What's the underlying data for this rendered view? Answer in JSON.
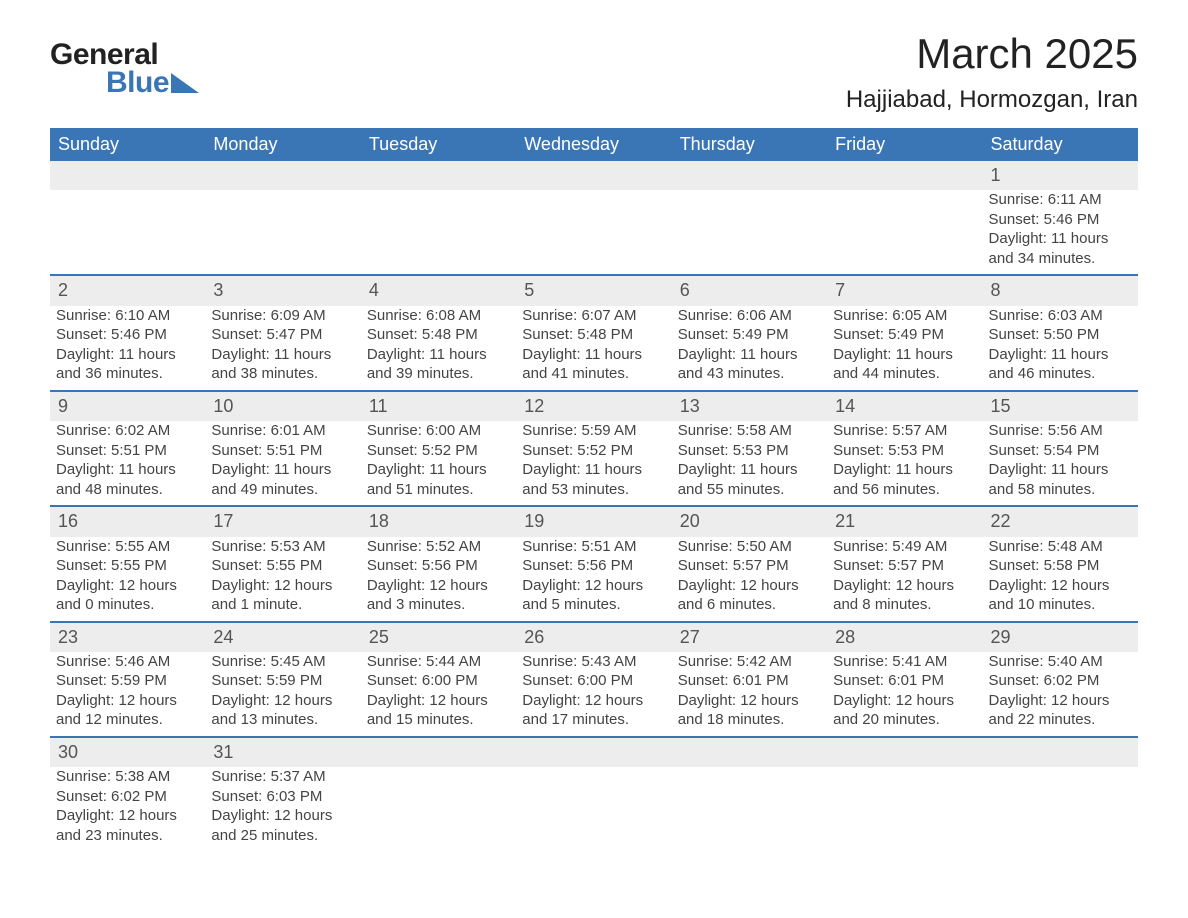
{
  "logo": {
    "text1": "General",
    "text2": "Blue",
    "accent_color": "#3a76b6"
  },
  "title": "March 2025",
  "subtitle": "Hajjiabad, Hormozgan, Iran",
  "colors": {
    "header_bg": "#3a76b6",
    "header_fg": "#ffffff",
    "daynum_bg": "#ededed",
    "text": "#444444",
    "page_bg": "#ffffff",
    "week_border": "#3a76b6"
  },
  "typography": {
    "title_fontsize": 42,
    "subtitle_fontsize": 24,
    "dayheader_fontsize": 18,
    "body_fontsize": 15
  },
  "day_headers": [
    "Sunday",
    "Monday",
    "Tuesday",
    "Wednesday",
    "Thursday",
    "Friday",
    "Saturday"
  ],
  "weeks": [
    [
      null,
      null,
      null,
      null,
      null,
      null,
      {
        "n": "1",
        "sr": "Sunrise: 6:11 AM",
        "ss": "Sunset: 5:46 PM",
        "d1": "Daylight: 11 hours",
        "d2": "and 34 minutes."
      }
    ],
    [
      {
        "n": "2",
        "sr": "Sunrise: 6:10 AM",
        "ss": "Sunset: 5:46 PM",
        "d1": "Daylight: 11 hours",
        "d2": "and 36 minutes."
      },
      {
        "n": "3",
        "sr": "Sunrise: 6:09 AM",
        "ss": "Sunset: 5:47 PM",
        "d1": "Daylight: 11 hours",
        "d2": "and 38 minutes."
      },
      {
        "n": "4",
        "sr": "Sunrise: 6:08 AM",
        "ss": "Sunset: 5:48 PM",
        "d1": "Daylight: 11 hours",
        "d2": "and 39 minutes."
      },
      {
        "n": "5",
        "sr": "Sunrise: 6:07 AM",
        "ss": "Sunset: 5:48 PM",
        "d1": "Daylight: 11 hours",
        "d2": "and 41 minutes."
      },
      {
        "n": "6",
        "sr": "Sunrise: 6:06 AM",
        "ss": "Sunset: 5:49 PM",
        "d1": "Daylight: 11 hours",
        "d2": "and 43 minutes."
      },
      {
        "n": "7",
        "sr": "Sunrise: 6:05 AM",
        "ss": "Sunset: 5:49 PM",
        "d1": "Daylight: 11 hours",
        "d2": "and 44 minutes."
      },
      {
        "n": "8",
        "sr": "Sunrise: 6:03 AM",
        "ss": "Sunset: 5:50 PM",
        "d1": "Daylight: 11 hours",
        "d2": "and 46 minutes."
      }
    ],
    [
      {
        "n": "9",
        "sr": "Sunrise: 6:02 AM",
        "ss": "Sunset: 5:51 PM",
        "d1": "Daylight: 11 hours",
        "d2": "and 48 minutes."
      },
      {
        "n": "10",
        "sr": "Sunrise: 6:01 AM",
        "ss": "Sunset: 5:51 PM",
        "d1": "Daylight: 11 hours",
        "d2": "and 49 minutes."
      },
      {
        "n": "11",
        "sr": "Sunrise: 6:00 AM",
        "ss": "Sunset: 5:52 PM",
        "d1": "Daylight: 11 hours",
        "d2": "and 51 minutes."
      },
      {
        "n": "12",
        "sr": "Sunrise: 5:59 AM",
        "ss": "Sunset: 5:52 PM",
        "d1": "Daylight: 11 hours",
        "d2": "and 53 minutes."
      },
      {
        "n": "13",
        "sr": "Sunrise: 5:58 AM",
        "ss": "Sunset: 5:53 PM",
        "d1": "Daylight: 11 hours",
        "d2": "and 55 minutes."
      },
      {
        "n": "14",
        "sr": "Sunrise: 5:57 AM",
        "ss": "Sunset: 5:53 PM",
        "d1": "Daylight: 11 hours",
        "d2": "and 56 minutes."
      },
      {
        "n": "15",
        "sr": "Sunrise: 5:56 AM",
        "ss": "Sunset: 5:54 PM",
        "d1": "Daylight: 11 hours",
        "d2": "and 58 minutes."
      }
    ],
    [
      {
        "n": "16",
        "sr": "Sunrise: 5:55 AM",
        "ss": "Sunset: 5:55 PM",
        "d1": "Daylight: 12 hours",
        "d2": "and 0 minutes."
      },
      {
        "n": "17",
        "sr": "Sunrise: 5:53 AM",
        "ss": "Sunset: 5:55 PM",
        "d1": "Daylight: 12 hours",
        "d2": "and 1 minute."
      },
      {
        "n": "18",
        "sr": "Sunrise: 5:52 AM",
        "ss": "Sunset: 5:56 PM",
        "d1": "Daylight: 12 hours",
        "d2": "and 3 minutes."
      },
      {
        "n": "19",
        "sr": "Sunrise: 5:51 AM",
        "ss": "Sunset: 5:56 PM",
        "d1": "Daylight: 12 hours",
        "d2": "and 5 minutes."
      },
      {
        "n": "20",
        "sr": "Sunrise: 5:50 AM",
        "ss": "Sunset: 5:57 PM",
        "d1": "Daylight: 12 hours",
        "d2": "and 6 minutes."
      },
      {
        "n": "21",
        "sr": "Sunrise: 5:49 AM",
        "ss": "Sunset: 5:57 PM",
        "d1": "Daylight: 12 hours",
        "d2": "and 8 minutes."
      },
      {
        "n": "22",
        "sr": "Sunrise: 5:48 AM",
        "ss": "Sunset: 5:58 PM",
        "d1": "Daylight: 12 hours",
        "d2": "and 10 minutes."
      }
    ],
    [
      {
        "n": "23",
        "sr": "Sunrise: 5:46 AM",
        "ss": "Sunset: 5:59 PM",
        "d1": "Daylight: 12 hours",
        "d2": "and 12 minutes."
      },
      {
        "n": "24",
        "sr": "Sunrise: 5:45 AM",
        "ss": "Sunset: 5:59 PM",
        "d1": "Daylight: 12 hours",
        "d2": "and 13 minutes."
      },
      {
        "n": "25",
        "sr": "Sunrise: 5:44 AM",
        "ss": "Sunset: 6:00 PM",
        "d1": "Daylight: 12 hours",
        "d2": "and 15 minutes."
      },
      {
        "n": "26",
        "sr": "Sunrise: 5:43 AM",
        "ss": "Sunset: 6:00 PM",
        "d1": "Daylight: 12 hours",
        "d2": "and 17 minutes."
      },
      {
        "n": "27",
        "sr": "Sunrise: 5:42 AM",
        "ss": "Sunset: 6:01 PM",
        "d1": "Daylight: 12 hours",
        "d2": "and 18 minutes."
      },
      {
        "n": "28",
        "sr": "Sunrise: 5:41 AM",
        "ss": "Sunset: 6:01 PM",
        "d1": "Daylight: 12 hours",
        "d2": "and 20 minutes."
      },
      {
        "n": "29",
        "sr": "Sunrise: 5:40 AM",
        "ss": "Sunset: 6:02 PM",
        "d1": "Daylight: 12 hours",
        "d2": "and 22 minutes."
      }
    ],
    [
      {
        "n": "30",
        "sr": "Sunrise: 5:38 AM",
        "ss": "Sunset: 6:02 PM",
        "d1": "Daylight: 12 hours",
        "d2": "and 23 minutes."
      },
      {
        "n": "31",
        "sr": "Sunrise: 5:37 AM",
        "ss": "Sunset: 6:03 PM",
        "d1": "Daylight: 12 hours",
        "d2": "and 25 minutes."
      },
      null,
      null,
      null,
      null,
      null
    ]
  ]
}
